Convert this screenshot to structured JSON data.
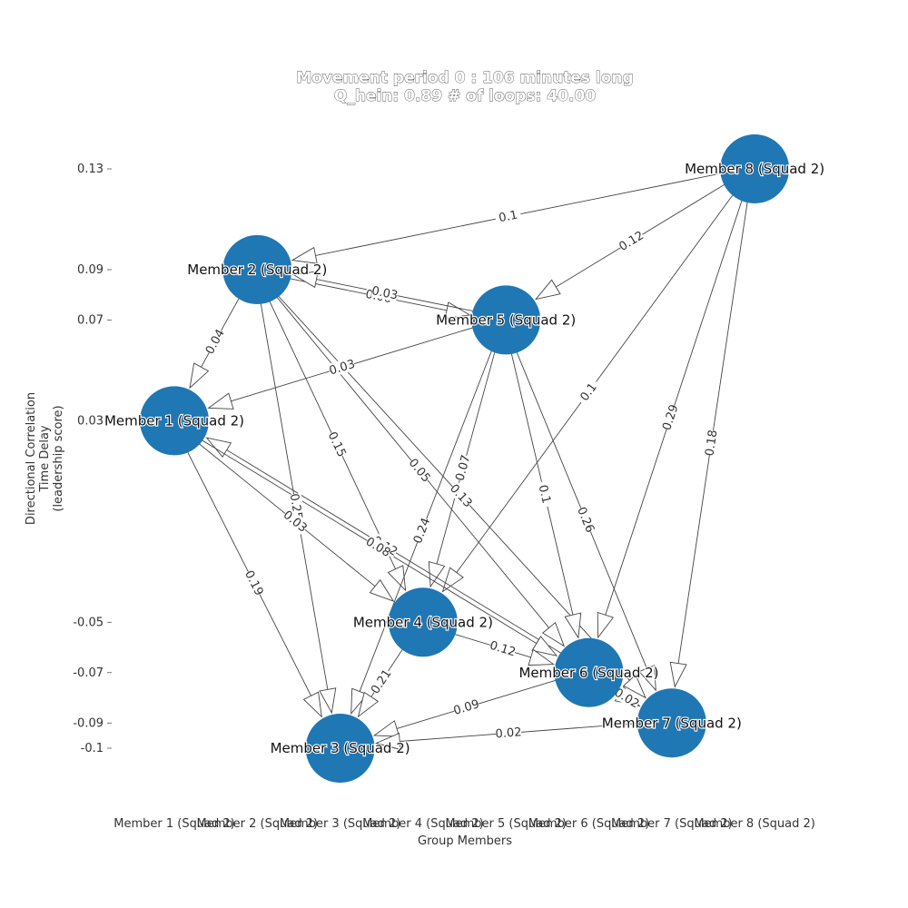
{
  "title": {
    "line1": "Movement period 0 : 106 minutes long",
    "line2": "Q_hein: 0.89  # of loops: 40.00"
  },
  "axes": {
    "xlabel": "Group Members",
    "ylabel_lines": [
      "Directional Correlation",
      "Time Delay",
      "(leadership score)"
    ]
  },
  "chart_data": {
    "type": "network",
    "xlabel": "Group Members",
    "ylabel": "Directional Correlation Time Delay (leadership score)",
    "y_ticks": [
      0.13,
      0.09,
      0.07,
      0.03,
      -0.05,
      -0.07,
      -0.09,
      -0.1
    ],
    "y_tick_labels": [
      "0.13",
      "0.09",
      "0.07",
      "0.03",
      "-0.05",
      "-0.07",
      "-0.09",
      "-0.1"
    ],
    "x_tick_labels": [
      "Member 1 (Squad 2)",
      "Member 2 (Squad 2)",
      "Member 3 (Squad 2)",
      "Member 4 (Squad 2)",
      "Member 5 (Squad 2)",
      "Member 6 (Squad 2)",
      "Member 7 (Squad 2)",
      "Member 8 (Squad 2)"
    ],
    "ylim": [
      -0.105,
      0.135
    ],
    "nodes": [
      {
        "id": 1,
        "label": "Member 1 (Squad 2)",
        "x_index": 1,
        "score": 0.03
      },
      {
        "id": 2,
        "label": "Member 2 (Squad 2)",
        "x_index": 2,
        "score": 0.09
      },
      {
        "id": 3,
        "label": "Member 3 (Squad 2)",
        "x_index": 3,
        "score": -0.1
      },
      {
        "id": 4,
        "label": "Member 4 (Squad 2)",
        "x_index": 4,
        "score": -0.05
      },
      {
        "id": 5,
        "label": "Member 5 (Squad 2)",
        "x_index": 5,
        "score": 0.07
      },
      {
        "id": 6,
        "label": "Member 6 (Squad 2)",
        "x_index": 6,
        "score": -0.07
      },
      {
        "id": 7,
        "label": "Member 7 (Squad 2)",
        "x_index": 7,
        "score": -0.09
      },
      {
        "id": 8,
        "label": "Member 8 (Squad 2)",
        "x_index": 8,
        "score": 0.13
      }
    ],
    "edges": [
      {
        "from": 8,
        "to": 2,
        "weight": "0.1"
      },
      {
        "from": 8,
        "to": 5,
        "weight": "0.12"
      },
      {
        "from": 8,
        "to": 4,
        "weight": "0.1"
      },
      {
        "from": 8,
        "to": 6,
        "weight": "0.29"
      },
      {
        "from": 8,
        "to": 7,
        "weight": "0.18"
      },
      {
        "from": 2,
        "to": 5,
        "weight": "0.06"
      },
      {
        "from": 5,
        "to": 2,
        "weight": "0.03"
      },
      {
        "from": 2,
        "to": 1,
        "weight": "0.04"
      },
      {
        "from": 2,
        "to": 3,
        "weight": "0.25"
      },
      {
        "from": 2,
        "to": 4,
        "weight": "0.15"
      },
      {
        "from": 2,
        "to": 6,
        "weight": "0.05"
      },
      {
        "from": 2,
        "to": 7,
        "weight": "0.13"
      },
      {
        "from": 5,
        "to": 1,
        "weight": "0.03"
      },
      {
        "from": 5,
        "to": 4,
        "weight": "0.07"
      },
      {
        "from": 5,
        "to": 3,
        "weight": "0.24"
      },
      {
        "from": 5,
        "to": 6,
        "weight": "0.1"
      },
      {
        "from": 5,
        "to": 7,
        "weight": "0.26"
      },
      {
        "from": 6,
        "to": 1,
        "weight": "0.12"
      },
      {
        "from": 1,
        "to": 4,
        "weight": "0.03"
      },
      {
        "from": 1,
        "to": 3,
        "weight": "0.19"
      },
      {
        "from": 1,
        "to": 6,
        "weight": "0.08"
      },
      {
        "from": 4,
        "to": 6,
        "weight": "0.12"
      },
      {
        "from": 4,
        "to": 3,
        "weight": "0.21"
      },
      {
        "from": 6,
        "to": 3,
        "weight": "0.09"
      },
      {
        "from": 7,
        "to": 3,
        "weight": "0.02"
      },
      {
        "from": 6,
        "to": 7,
        "weight": "0.02"
      }
    ]
  },
  "colors": {
    "node_fill": "#1f77b4",
    "edge_stroke": "#444444",
    "arrow_fill": "#ffffff"
  }
}
